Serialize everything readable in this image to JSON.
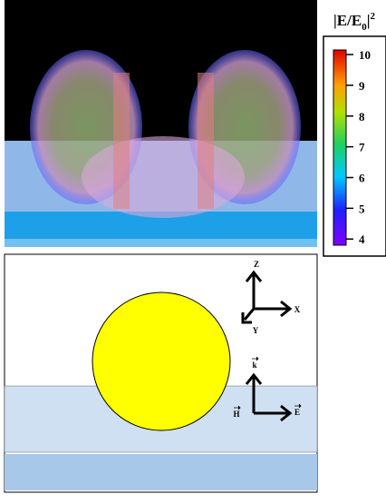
{
  "colorbar": {
    "title": {
      "text": "|E/E",
      "sub": "0",
      "after": "|",
      "sup": "2"
    },
    "range": [
      3.8,
      10.15
    ],
    "ticks": [
      4,
      5,
      6,
      7,
      8,
      9,
      10
    ]
  },
  "axes_top": {
    "z": "Z",
    "x": "X",
    "y": "Y"
  },
  "axes_bottom": {
    "k": "k",
    "h": "H",
    "e": "E"
  }
}
